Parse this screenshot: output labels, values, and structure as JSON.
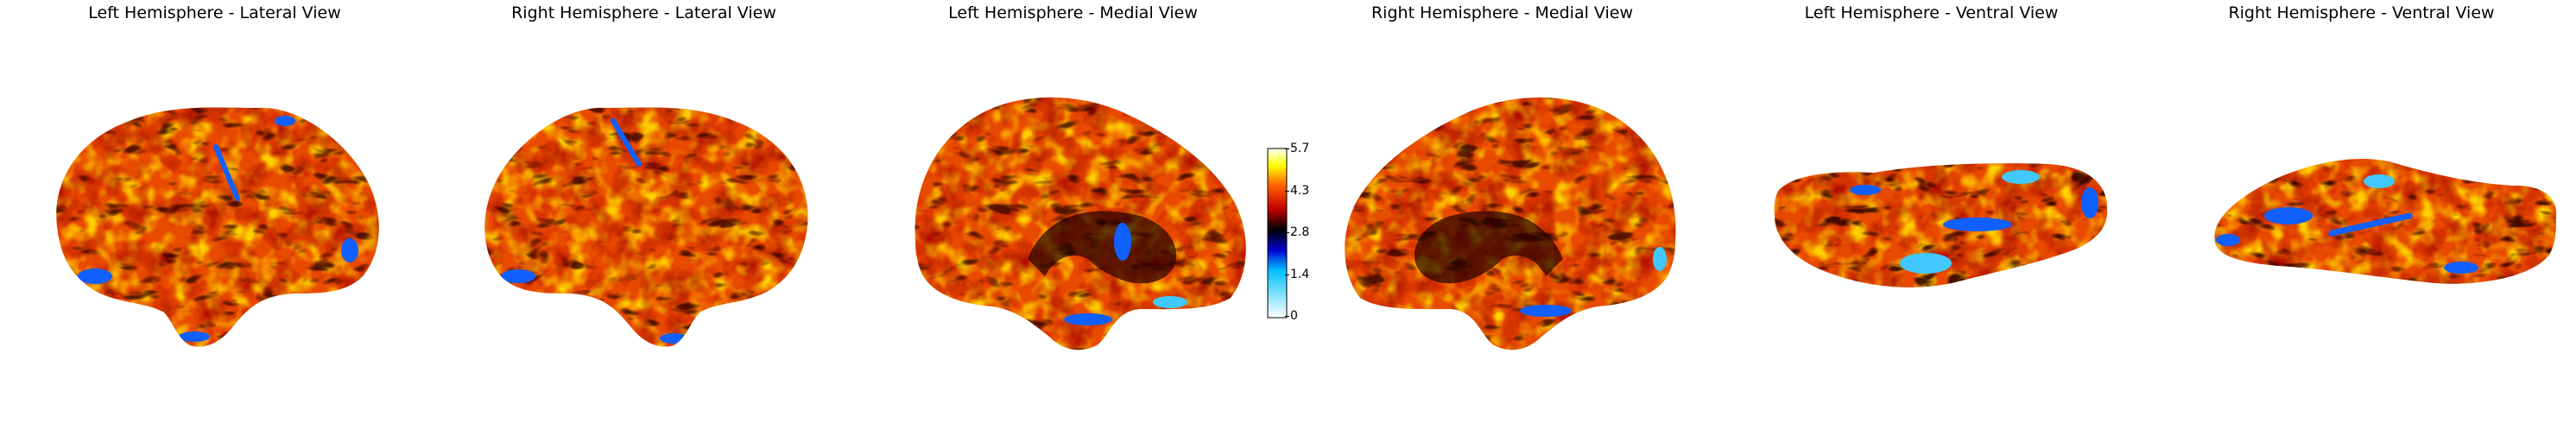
{
  "panels": [
    {
      "title": "Left Hemisphere - Lateral View"
    },
    {
      "title": "Right Hemisphere - Lateral View"
    },
    {
      "title": "Left Hemisphere - Medial View"
    },
    {
      "title": "Right Hemisphere - Medial View"
    },
    {
      "title": "Left Hemisphere - Ventral View"
    },
    {
      "title": "Right Hemisphere - Ventral View"
    }
  ],
  "colorbar": {
    "ticks": [
      "5.7",
      "4.3",
      "2.8",
      "1.4",
      "0"
    ],
    "colormap": [
      "#ffffff",
      "#00a0ff",
      "#0000c8",
      "#000000",
      "#c80000",
      "#ff6a00",
      "#ffff00",
      "#ffffff"
    ]
  },
  "colors": {
    "hot_base": "#e84a00",
    "hot_bright": "#ffd000",
    "dark": "#3a0000",
    "blue": "#1060ff",
    "cyan": "#40c8ff"
  }
}
